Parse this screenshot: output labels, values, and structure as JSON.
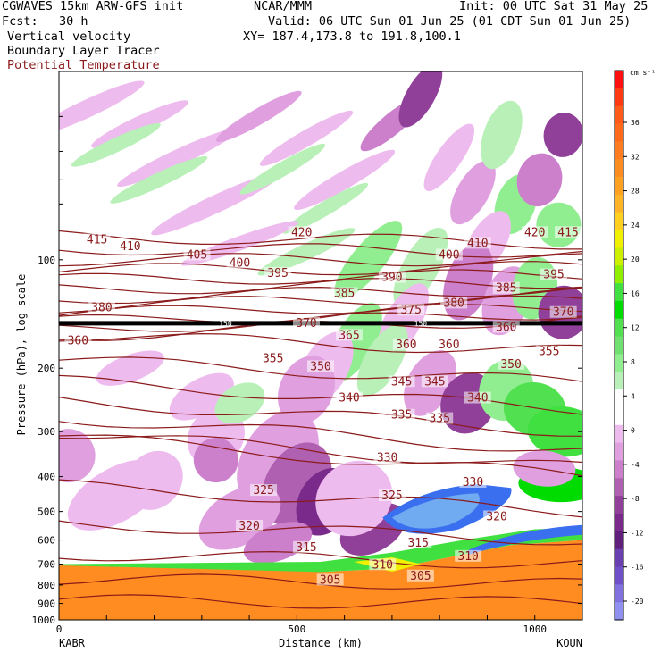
{
  "header": {
    "model": "CGWAVES 15km ARW-GFS init",
    "forecast_label": "Fcst:",
    "forecast_value": "30 h",
    "org": "NCAR/MMM",
    "init": "Init: 00 UTC Sat 31 May 25",
    "valid": "Valid: 06 UTC Sun 01 Jun 25 (01 CDT Sun 01 Jun 25)",
    "xy": "XY= 187.4,173.8 to 191.8,100.1",
    "field1": "Vertical velocity",
    "field2": "Boundary Layer Tracer",
    "field3": "Potential Temperature",
    "field3_color": "#8b1a1a"
  },
  "chart_data": {
    "type": "heatmap",
    "title": "Vertical velocity",
    "ylabel": "Pressure (hPa), log scale",
    "xlabel": "Distance (km)",
    "x_ticks": [
      "0",
      "500",
      "1000"
    ],
    "x_tick_values": [
      0,
      500,
      1000
    ],
    "xlim": [
      0,
      1100
    ],
    "y_ticks": [
      "100",
      "200",
      "300",
      "400",
      "500",
      "600",
      "700",
      "800",
      "900",
      "1000"
    ],
    "y_tick_values": [
      100,
      200,
      300,
      400,
      500,
      600,
      700,
      800,
      900,
      1000
    ],
    "ylim": [
      1000,
      30
    ],
    "log_scale_y": true,
    "left_station": "KABR",
    "right_station": "KOUN",
    "tropopause_label": "150",
    "tropopause_pressure": 150,
    "theta_label_levels": [
      305,
      310,
      315,
      320,
      325,
      330,
      335,
      340,
      345,
      350,
      355,
      360,
      365,
      370,
      375,
      380,
      385,
      390,
      395,
      400,
      405,
      410,
      415,
      420
    ],
    "theta_labels": [
      {
        "text": "415",
        "x": 80,
        "p": 88
      },
      {
        "text": "410",
        "x": 150,
        "p": 92
      },
      {
        "text": "405",
        "x": 290,
        "p": 97
      },
      {
        "text": "400",
        "x": 380,
        "p": 102
      },
      {
        "text": "395",
        "x": 460,
        "p": 109
      },
      {
        "text": "420",
        "x": 510,
        "p": 84
      },
      {
        "text": "385",
        "x": 600,
        "p": 124
      },
      {
        "text": "390",
        "x": 700,
        "p": 112
      },
      {
        "text": "400",
        "x": 820,
        "p": 97
      },
      {
        "text": "410",
        "x": 880,
        "p": 90
      },
      {
        "text": "420",
        "x": 1000,
        "p": 84
      },
      {
        "text": "415",
        "x": 1070,
        "p": 84
      },
      {
        "text": "395",
        "x": 1040,
        "p": 110
      },
      {
        "text": "385",
        "x": 940,
        "p": 120
      },
      {
        "text": "380",
        "x": 830,
        "p": 132
      },
      {
        "text": "375",
        "x": 740,
        "p": 138
      },
      {
        "text": "380",
        "x": 90,
        "p": 136
      },
      {
        "text": "370",
        "x": 520,
        "p": 150
      },
      {
        "text": "365",
        "x": 610,
        "p": 162
      },
      {
        "text": "360",
        "x": 730,
        "p": 172
      },
      {
        "text": "360",
        "x": 820,
        "p": 172
      },
      {
        "text": "360",
        "x": 940,
        "p": 154
      },
      {
        "text": "370",
        "x": 1060,
        "p": 140
      },
      {
        "text": "355",
        "x": 1030,
        "p": 180
      },
      {
        "text": "360",
        "x": 40,
        "p": 168
      },
      {
        "text": "355",
        "x": 450,
        "p": 188
      },
      {
        "text": "350",
        "x": 550,
        "p": 198
      },
      {
        "text": "350",
        "x": 950,
        "p": 195
      },
      {
        "text": "345",
        "x": 720,
        "p": 218
      },
      {
        "text": "345",
        "x": 790,
        "p": 218
      },
      {
        "text": "340",
        "x": 610,
        "p": 242
      },
      {
        "text": "340",
        "x": 880,
        "p": 242
      },
      {
        "text": "335",
        "x": 720,
        "p": 270
      },
      {
        "text": "335",
        "x": 800,
        "p": 276
      },
      {
        "text": "330",
        "x": 690,
        "p": 355
      },
      {
        "text": "330",
        "x": 870,
        "p": 415
      },
      {
        "text": "325",
        "x": 430,
        "p": 437
      },
      {
        "text": "325",
        "x": 700,
        "p": 452
      },
      {
        "text": "320",
        "x": 400,
        "p": 549
      },
      {
        "text": "320",
        "x": 920,
        "p": 517
      },
      {
        "text": "315",
        "x": 520,
        "p": 629
      },
      {
        "text": "315",
        "x": 755,
        "p": 612
      },
      {
        "text": "310",
        "x": 680,
        "p": 703
      },
      {
        "text": "310",
        "x": 860,
        "p": 666
      },
      {
        "text": "305",
        "x": 570,
        "p": 775
      },
      {
        "text": "305",
        "x": 760,
        "p": 755
      }
    ],
    "colorbar": {
      "unit": "cm s⁻¹",
      "labels": [
        "36",
        "32",
        "28",
        "24",
        "20",
        "16",
        "12",
        "8",
        "4",
        "0",
        "-4",
        "-8",
        "-12",
        "-16",
        "-20"
      ],
      "colors": [
        "#ff1010",
        "#ff3a10",
        "#ff5a18",
        "#ff6a1a",
        "#ff7c20",
        "#ff8c20",
        "#ffa020",
        "#ffb428",
        "#ffd020",
        "#f0f000",
        "#ccf000",
        "#90ee00",
        "#40e040",
        "#00dc00",
        "#50e050",
        "#70e070",
        "#90ee90",
        "#b8f0b8",
        "#ffffff",
        "#ffffff",
        "#eebbee",
        "#e0a0e0",
        "#cc80cc",
        "#b060b0",
        "#904098",
        "#7a2a8a",
        "#601f7a",
        "#6a40b0",
        "#7050c8",
        "#8070e0",
        "#9090f0"
      ]
    }
  }
}
